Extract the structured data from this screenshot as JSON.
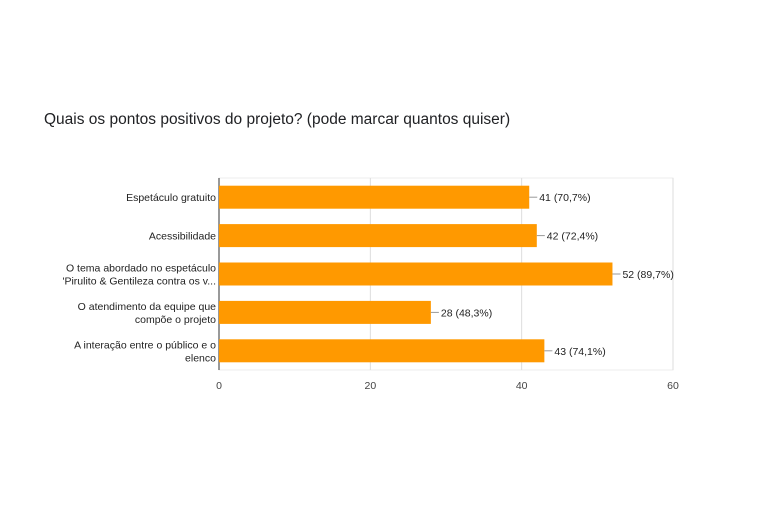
{
  "chart_data": {
    "type": "bar",
    "orientation": "horizontal",
    "title": "Quais os pontos positivos do projeto? (pode marcar quantos quiser)",
    "categories": [
      [
        "Espetáculo gratuito"
      ],
      [
        "Acessibilidade"
      ],
      [
        "O tema abordado no espetáculo",
        "'Pirulito & Gentileza contra os v..."
      ],
      [
        "O atendimento da equipe que",
        "compõe o projeto"
      ],
      [
        "A interação entre o público e o",
        "elenco"
      ]
    ],
    "values": [
      41,
      42,
      52,
      28,
      43
    ],
    "value_labels": [
      "41 (70,7%)",
      "42 (72,4%)",
      "52 (89,7%)",
      "28 (48,3%)",
      "43 (74,1%)"
    ],
    "xlim": [
      0,
      60
    ],
    "xticks": [
      0,
      20,
      40,
      60
    ],
    "grid": true,
    "bar_color": "#ff9900"
  }
}
